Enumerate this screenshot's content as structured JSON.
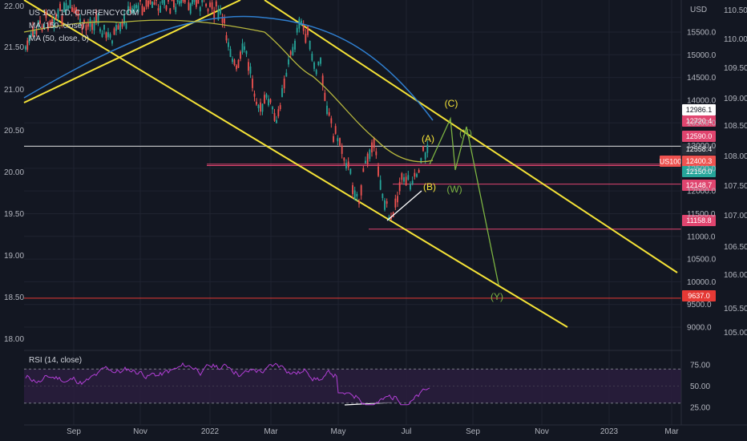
{
  "header": {
    "symbol": "US 100, 1D, CURRENCYCOM",
    "indicator_1": "MA (150, close)",
    "indicator_2": "MA (50, close, 0)"
  },
  "colors": {
    "background": "#131722",
    "grid": "#1f2330",
    "up": "#26a69a",
    "down": "#ef5350",
    "channel": "#f5e337",
    "ma150": "#2f7fd0",
    "ma50": "#b8b83e",
    "projection": "#7cb342",
    "rsi": "#b23fd6",
    "rsi_band": "#2a1d3d",
    "ref_line": "#ffffff",
    "level_line": "#e0456f",
    "support_line": "#e53935"
  },
  "chart_data": [
    {
      "type": "candlestick",
      "title": "US 100, 1D, CURRENCYCOM",
      "dates": [
        "Sep",
        "Nov",
        "2022",
        "Mar",
        "May",
        "Jul",
        "Sep",
        "Nov",
        "2023",
        "Mar"
      ],
      "right_axis": {
        "label": "USD",
        "ticks": [
          9000,
          9500,
          10000,
          10500,
          11000,
          11500,
          12000,
          12500,
          13000,
          13500,
          14000,
          14500,
          15000,
          15500
        ]
      },
      "far_right_axis": {
        "ticks": [
          105.0,
          105.5,
          106.0,
          106.5,
          107.0,
          107.5,
          108.0,
          108.5,
          109.0,
          109.5,
          110.0,
          110.5
        ]
      },
      "left_axis": {
        "ticks": [
          "22.00",
          "21.50",
          "21.00",
          "20.50",
          "20.00",
          "19.50",
          "19.00",
          "18.50",
          "18.00"
        ]
      },
      "price_levels": [
        {
          "label": "12986.1",
          "value": 12986.1,
          "tag_bg": "#ffffff",
          "tag_fg": "#131722"
        },
        {
          "label": "12720.4",
          "value": 12720.4,
          "tag_bg": "#e0456f",
          "tag_fg": "#ffffff"
        },
        {
          "label": "12590.0",
          "value": 12590.0,
          "tag_bg": "#e0456f",
          "tag_fg": "#ffffff"
        },
        {
          "label": "12558.4",
          "value": 12558.4,
          "tag_bg": "#2a2e39",
          "tag_fg": "#ffffff"
        },
        {
          "label": "12400.3",
          "value": 12400.3,
          "tag_bg": "#ef5350",
          "tag_fg": "#ffffff"
        },
        {
          "label": "12150.0",
          "value": 12150.0,
          "tag_bg": "#26a69a",
          "tag_fg": "#ffffff"
        },
        {
          "label": "12148.7",
          "value": 12148.7,
          "tag_bg": "#e0456f",
          "tag_fg": "#ffffff"
        },
        {
          "label": "11158.8",
          "value": 11158.8,
          "tag_bg": "#e0456f",
          "tag_fg": "#ffffff"
        },
        {
          "label": "9637.0",
          "value": 9637.0,
          "tag_bg": "#e53935",
          "tag_fg": "#ffffff"
        }
      ],
      "symbol_tag": "US100",
      "wave_labels": [
        "(A)",
        "(B)",
        "(C)",
        "(W)",
        "(X)",
        "(Y)"
      ],
      "series": [
        {
          "name": "MA (150, close)"
        },
        {
          "name": "MA (50, close, 0)"
        }
      ]
    },
    {
      "type": "line",
      "title": "RSI (14, close)",
      "yticks": [
        25.0,
        50.0,
        75.0
      ],
      "band": [
        30,
        70
      ],
      "ylim": [
        20,
        82
      ]
    }
  ]
}
